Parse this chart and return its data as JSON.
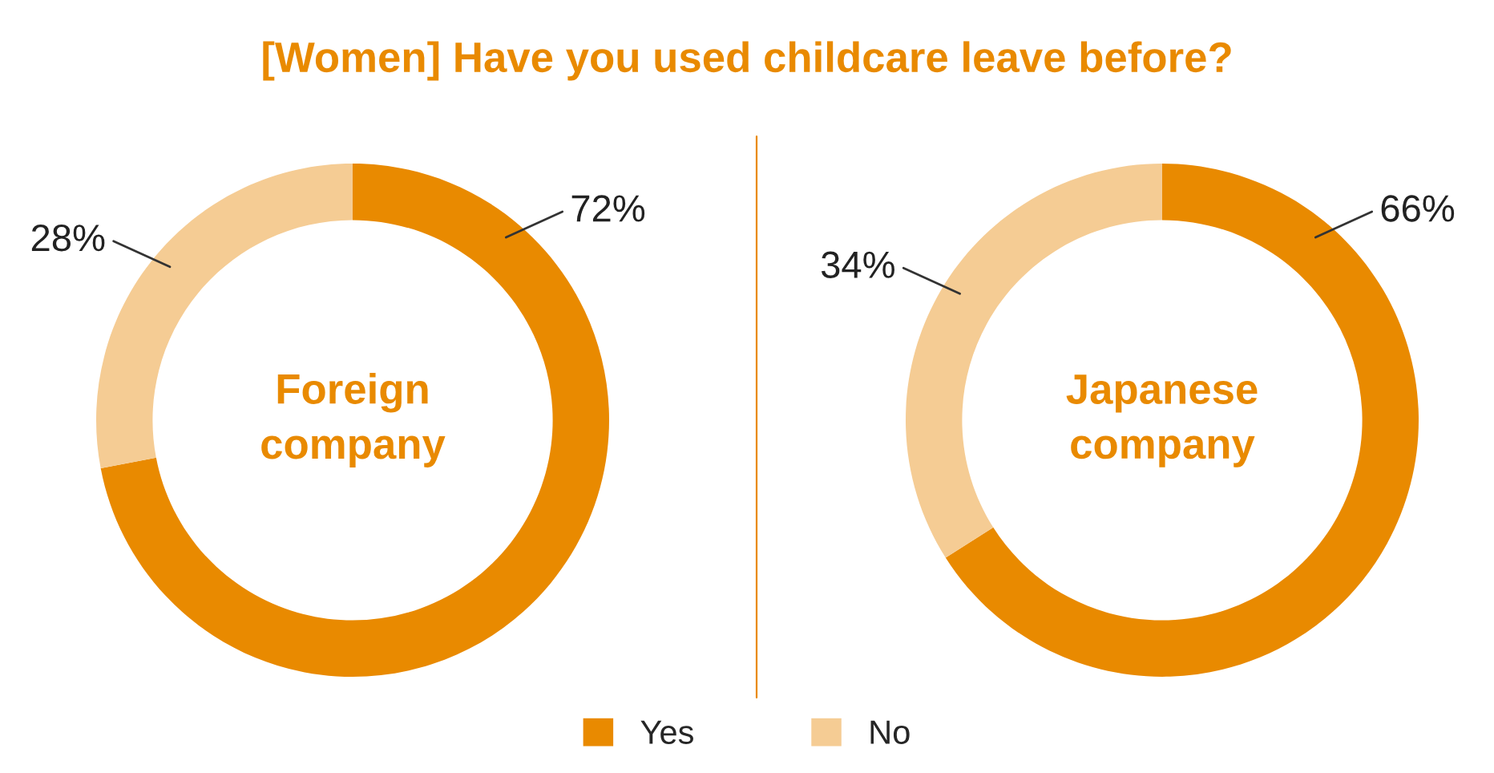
{
  "chart_data": {
    "type": "donut",
    "title": "[Women] Have you used childcare leave before?",
    "categories": [
      "Yes",
      "No"
    ],
    "colors": [
      "#e98a00",
      "#f5cc94"
    ],
    "legend": "bottom",
    "series": [
      {
        "name": "Foreign company",
        "values": [
          72,
          28
        ],
        "value_labels": [
          "72%",
          "28%"
        ]
      },
      {
        "name": "Japanese company",
        "values": [
          66,
          34
        ],
        "value_labels": [
          "66%",
          "34%"
        ]
      }
    ]
  }
}
